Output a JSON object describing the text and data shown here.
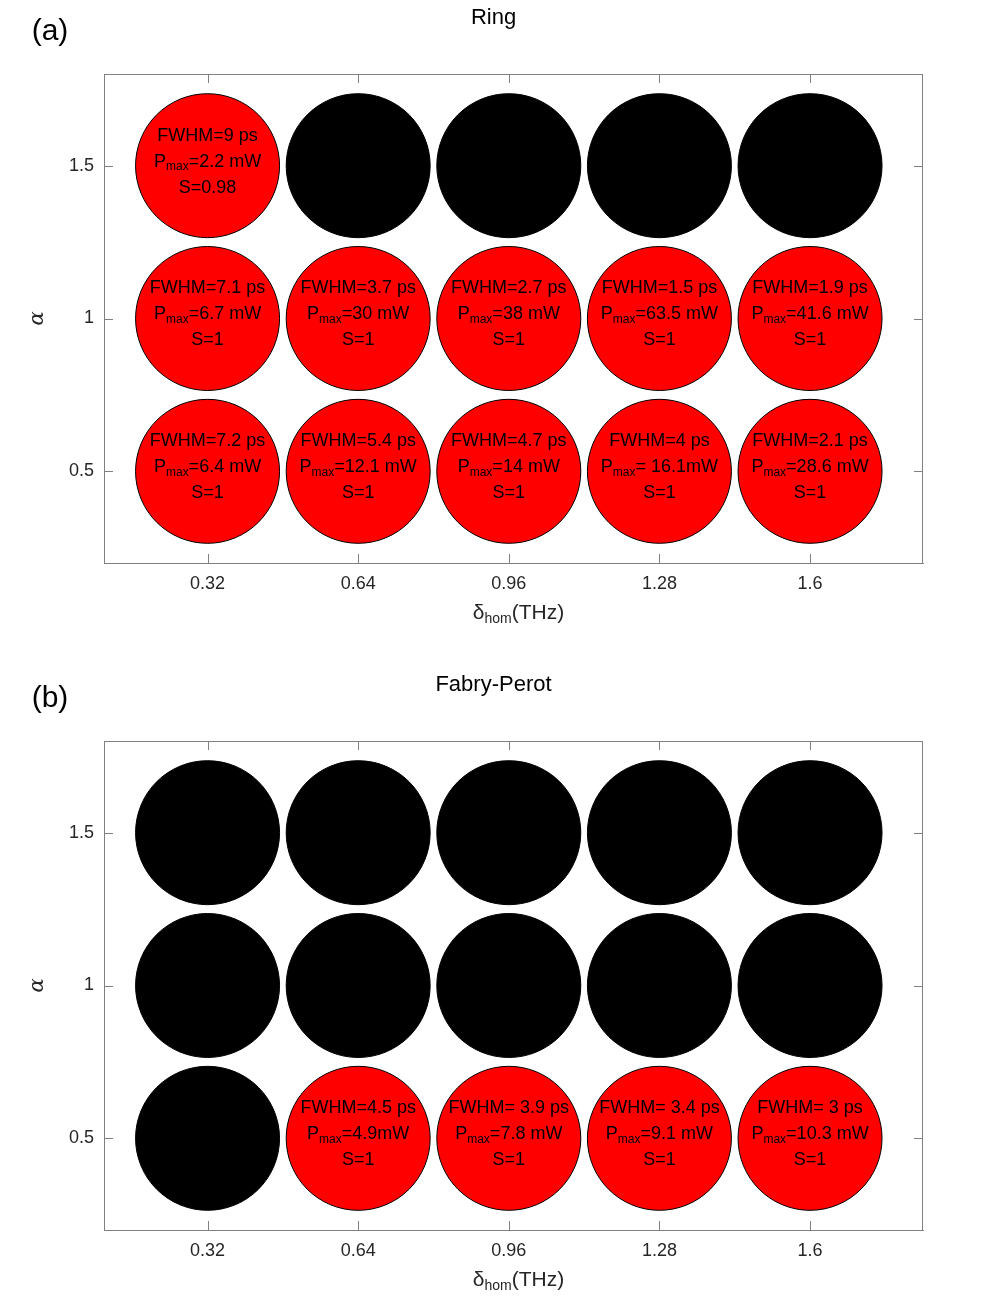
{
  "chart_data": [
    {
      "type": "scatter",
      "title": "Ring",
      "xlabel": "δ$_{hom}$(THz)",
      "ylabel": "α",
      "x": [
        0.32,
        0.64,
        0.96,
        1.28,
        1.6,
        0.32,
        0.64,
        0.96,
        1.28,
        1.6,
        0.32,
        0.64,
        0.96,
        1.28,
        1.6
      ],
      "values": [
        1.5,
        1.5,
        1.5,
        1.5,
        1.5,
        1,
        1,
        1,
        1,
        1,
        0.5,
        0.5,
        0.5,
        0.5,
        0.5
      ],
      "colors": [
        "#ff0000",
        "#000000",
        "#000000",
        "#000000",
        "#000000",
        "#ff0000",
        "#ff0000",
        "#ff0000",
        "#ff0000",
        "#ff0000",
        "#ff0000",
        "#ff0000",
        "#ff0000",
        "#ff0000",
        "#ff0000"
      ],
      "xlim": [
        0.1,
        1.84
      ],
      "xticks": [
        0.32,
        0.64,
        0.96,
        1.28,
        1.6
      ],
      "ylim": [
        0.2,
        1.8
      ],
      "yticks": [
        0.5,
        1,
        1.5
      ],
      "marker": "circle",
      "legend": false,
      "grid": false,
      "annotations": [
        "(a)",
        {
          "text": "FWHM=9 ps\nP$_{max}$=2.2 mW\nS=0.98",
          "x": 0.32,
          "y": 1.5
        },
        {
          "text": "FWHM=7.1 ps\nP$_{max}$=6.7 mW\nS=1",
          "x": 0.32,
          "y": 1
        },
        {
          "text": "FWHM=3.7 ps\nP$_{max}$=30 mW\nS=1",
          "x": 0.64,
          "y": 1
        },
        {
          "text": "FWHM=2.7 ps\nP$_{max}$=38 mW\nS=1",
          "x": 0.96,
          "y": 1
        },
        {
          "text": "FWHM=1.5 ps\nP$_{max}$=63.5 mW\nS=1",
          "x": 1.28,
          "y": 1
        },
        {
          "text": "FWHM=1.9 ps\nP$_{max}$=41.6 mW\nS=1",
          "x": 1.6,
          "y": 1
        },
        {
          "text": "FWHM=7.2 ps\nP$_{max}$=6.4 mW\nS=1",
          "x": 0.32,
          "y": 0.5
        },
        {
          "text": "FWHM=5.4 ps\nP$_{max}$=12.1 mW\nS=1",
          "x": 0.64,
          "y": 0.5
        },
        {
          "text": "FWHM=4.7 ps\nP$_{max}$=14 mW\nS=1",
          "x": 0.96,
          "y": 0.5
        },
        {
          "text": "FWHM=4 ps\nP$_{max}$= 16.1mW\nS=1",
          "x": 1.28,
          "y": 0.5
        },
        {
          "text": "FWHM=2.1 ps\nP$_{max}$=28.6 mW\nS=1",
          "x": 1.6,
          "y": 0.5
        }
      ]
    },
    {
      "type": "scatter",
      "title": "Fabry-Perot",
      "xlabel": "δ$_{hom}$(THz)",
      "ylabel": "α",
      "x": [
        0.32,
        0.64,
        0.96,
        1.28,
        1.6,
        0.32,
        0.64,
        0.96,
        1.28,
        1.6,
        0.32,
        0.64,
        0.96,
        1.28,
        1.6
      ],
      "values": [
        1.5,
        1.5,
        1.5,
        1.5,
        1.5,
        1,
        1,
        1,
        1,
        1,
        0.5,
        0.5,
        0.5,
        0.5,
        0.5
      ],
      "colors": [
        "#000000",
        "#000000",
        "#000000",
        "#000000",
        "#000000",
        "#000000",
        "#000000",
        "#000000",
        "#000000",
        "#000000",
        "#000000",
        "#ff0000",
        "#ff0000",
        "#ff0000",
        "#ff0000"
      ],
      "xlim": [
        0.1,
        1.84
      ],
      "xticks": [
        0.32,
        0.64,
        0.96,
        1.28,
        1.6
      ],
      "ylim": [
        0.2,
        1.8
      ],
      "yticks": [
        0.5,
        1,
        1.5
      ],
      "marker": "circle",
      "legend": false,
      "grid": false,
      "annotations": [
        "(b)",
        {
          "text": "FWHM=4.5 ps\nP$_{max}$=4.9mW\nS=1",
          "x": 0.64,
          "y": 0.5
        },
        {
          "text": "FWHM= 3.9 ps\nP$_{max}$=7.8 mW\nS=1",
          "x": 0.96,
          "y": 0.5
        },
        {
          "text": "FWHM= 3.4 ps\nP$_{max}$=9.1 mW\nS=1",
          "x": 1.28,
          "y": 0.5
        },
        {
          "text": "FWHM= 3 ps\nP$_{max}$=10.3 mW\nS=1",
          "x": 1.6,
          "y": 0.5
        }
      ]
    }
  ]
}
